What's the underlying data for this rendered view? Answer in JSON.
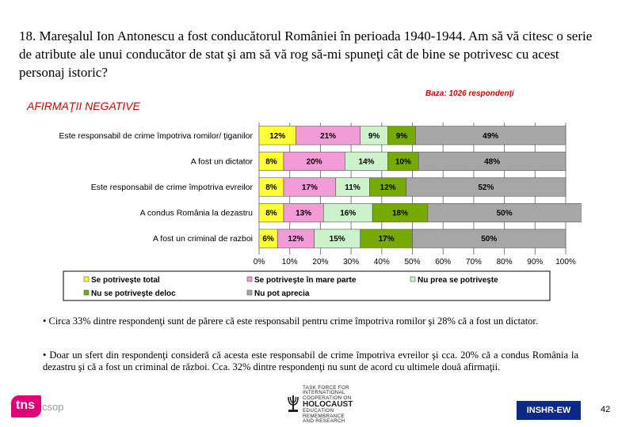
{
  "slide": {
    "question": "18. Mareşalul Ion Antonescu a fost conducătorul României în perioada 1940-1944. Am să vă citesc o serie de atribute ale unui conducător de stat şi am să vă rog să-mi spuneţi cât de bine se potrivesc cu acest personaj istoric?",
    "base_note": "Baza: 1026 respondenţi",
    "section_title": "AFIRMAŢII NEGATIVE",
    "bullets": [
      "• Circa 33% dintre respondenţi sunt de părere că este responsabil pentru crime împotriva romilor şi 28% că a fost un dictator.",
      "• Doar un sfert din respondenţi consideră că acesta este responsabil de crime împotriva evreilor şi cca. 20% că a condus România la dezastru şi că a fost un criminal de război. Cca. 32% dintre respondenţi nu sunt de acord cu ultimele două afirmaţii."
    ],
    "logos": {
      "tns_mark": "tns",
      "tns_suffix": "csop",
      "taskforce_lines": [
        "TASK FORCE FOR",
        "INTERNATIONAL",
        "COOPERATION ON",
        "HOLOCAUST",
        "EDUCATION",
        "REMEMBRANCE",
        "AND RESEARCH"
      ],
      "inshr": "INSHR-EW"
    },
    "page_number": "42"
  },
  "chart_data": {
    "type": "bar",
    "orientation": "horizontal",
    "stacked": true,
    "categories": [
      "Este responsabil de crime împotriva romilor/ ţiganilor",
      "A fost un dictator",
      "Este responsabil de crime împotriva evreilor",
      "A condus România la dezastru",
      "A fost un criminal de razboi"
    ],
    "series": [
      {
        "name": "Se potriveşte total",
        "color": "#ffff33",
        "label_color": "#000000",
        "values": [
          12,
          8,
          8,
          8,
          6
        ]
      },
      {
        "name": "Se potriveşte în mare parte",
        "color": "#f29bd6",
        "label_color": "#000000",
        "values": [
          21,
          20,
          17,
          13,
          12
        ]
      },
      {
        "name": "Nu prea se potriveşte",
        "color": "#ccf2cc",
        "label_color": "#000000",
        "values": [
          9,
          14,
          11,
          16,
          15
        ]
      },
      {
        "name": "Nu se potriveşte deloc",
        "color": "#77aa00",
        "label_color": "#000000",
        "values": [
          9,
          10,
          12,
          18,
          17
        ]
      },
      {
        "name": "Nu pot aprecia",
        "color": "#a6a6a6",
        "label_color": "#000000",
        "values": [
          49,
          48,
          52,
          50,
          50
        ]
      }
    ],
    "data_labels": [
      [
        "12%",
        "21%",
        "9%",
        "9%",
        "49%"
      ],
      [
        "8%",
        "20%",
        "14%",
        "10%",
        "48%"
      ],
      [
        "8%",
        "17%",
        "11%",
        "12%",
        "52%"
      ],
      [
        "8%",
        "13%",
        "16%",
        "18%",
        "50%"
      ],
      [
        "6%",
        "12%",
        "15%",
        "17%",
        "50%"
      ]
    ],
    "xlim": [
      0,
      100
    ],
    "x_ticks": [
      "0%",
      "10%",
      "20%",
      "30%",
      "40%",
      "50%",
      "60%",
      "70%",
      "80%",
      "90%",
      "100%"
    ],
    "grid": true,
    "legend_position": "bottom"
  }
}
